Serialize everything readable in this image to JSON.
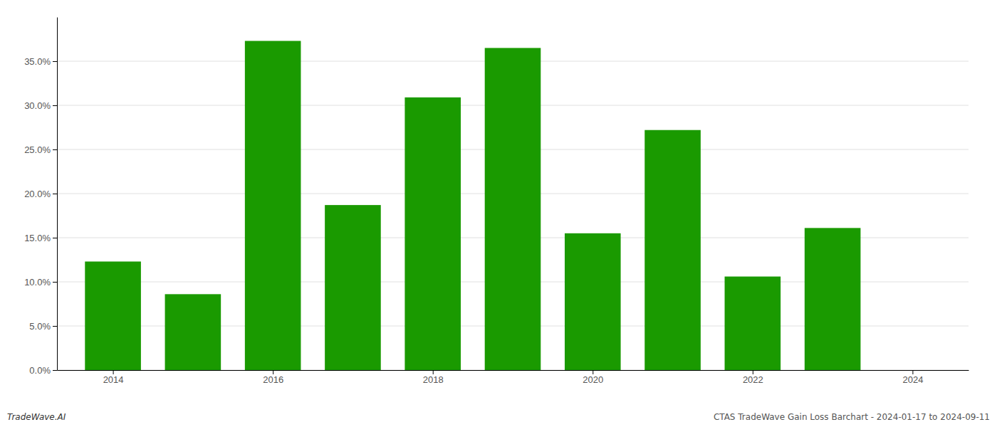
{
  "chart_data": {
    "type": "bar",
    "x": [
      2014,
      2015,
      2016,
      2017,
      2018,
      2019,
      2020,
      2021,
      2022,
      2023
    ],
    "values": [
      0.123,
      0.086,
      0.373,
      0.187,
      0.309,
      0.365,
      0.155,
      0.272,
      0.106,
      0.161
    ],
    "color": "#1a9a00",
    "xlim": [
      2013.3,
      2024.7
    ],
    "xticks": [
      2014,
      2016,
      2018,
      2020,
      2022,
      2024
    ],
    "ylim": [
      0,
      0.4
    ],
    "yticks": [
      {
        "value": 0.0,
        "label": "0.0%"
      },
      {
        "value": 0.05,
        "label": "5.0%"
      },
      {
        "value": 0.1,
        "label": "10.0%"
      },
      {
        "value": 0.15,
        "label": "15.0%"
      },
      {
        "value": 0.2,
        "label": "20.0%"
      },
      {
        "value": 0.25,
        "label": "25.0%"
      },
      {
        "value": 0.3,
        "label": "30.0%"
      },
      {
        "value": 0.35,
        "label": "35.0%"
      }
    ],
    "grid": true,
    "annotations": [
      "TradeWave.AI",
      "CTAS TradeWave Gain Loss Barchart - 2024-01-17 to 2024-09-11"
    ]
  }
}
